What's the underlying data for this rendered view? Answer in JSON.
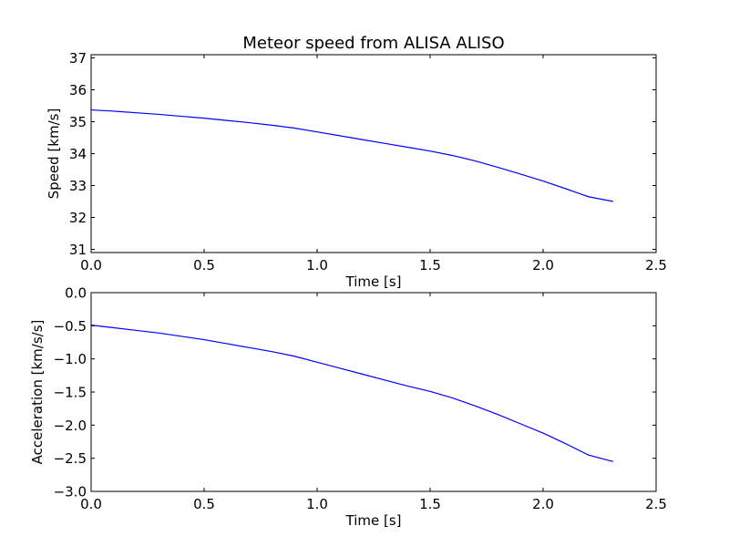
{
  "chart_data": [
    {
      "type": "line",
      "title": "Meteor speed from  ALISA ALISO",
      "xlabel": "Time [s]",
      "ylabel": "Speed [km/s]",
      "xlim": [
        0.0,
        2.5
      ],
      "ylim": [
        30.9,
        37.1
      ],
      "xticks": [
        0.0,
        0.5,
        1.0,
        1.5,
        2.0,
        2.5
      ],
      "xtick_labels": [
        "0.0",
        "0.5",
        "1.0",
        "1.5",
        "2.0",
        "2.5"
      ],
      "yticks": [
        31,
        32,
        33,
        34,
        35,
        36,
        37
      ],
      "ytick_labels": [
        "31",
        "32",
        "33",
        "34",
        "35",
        "36",
        "37"
      ],
      "grid": false,
      "line_color": "#0000ff",
      "series": [
        {
          "x": [
            0.0,
            0.1,
            0.2,
            0.3,
            0.4,
            0.5,
            0.6,
            0.7,
            0.8,
            0.9,
            1.0,
            1.1,
            1.2,
            1.3,
            1.4,
            1.5,
            1.6,
            1.7,
            1.8,
            1.9,
            2.0,
            2.1,
            2.2,
            2.31
          ],
          "y": [
            35.37,
            35.33,
            35.28,
            35.23,
            35.17,
            35.11,
            35.04,
            34.97,
            34.89,
            34.8,
            34.68,
            34.56,
            34.44,
            34.32,
            34.2,
            34.08,
            33.94,
            33.77,
            33.57,
            33.36,
            33.14,
            32.9,
            32.65,
            32.5
          ]
        }
      ]
    },
    {
      "type": "line",
      "title": "",
      "xlabel": "Time [s]",
      "ylabel": "Acceleration [km/s/s]",
      "xlim": [
        0.0,
        2.5
      ],
      "ylim": [
        -3.0,
        0.0
      ],
      "xticks": [
        0.0,
        0.5,
        1.0,
        1.5,
        2.0,
        2.5
      ],
      "xtick_labels": [
        "0.0",
        "0.5",
        "1.0",
        "1.5",
        "2.0",
        "2.5"
      ],
      "yticks": [
        0.0,
        -0.5,
        -1.0,
        -1.5,
        -2.0,
        -2.5,
        -3.0
      ],
      "ytick_labels": [
        "0.0",
        "−0.5",
        "−1.0",
        "−1.5",
        "−2.0",
        "−2.5",
        "−3.0"
      ],
      "grid": false,
      "line_color": "#0000ff",
      "series": [
        {
          "x": [
            0.0,
            0.1,
            0.2,
            0.3,
            0.4,
            0.5,
            0.6,
            0.7,
            0.8,
            0.9,
            1.0,
            1.1,
            1.2,
            1.3,
            1.4,
            1.5,
            1.6,
            1.7,
            1.8,
            1.9,
            2.0,
            2.1,
            2.2,
            2.31
          ],
          "y": [
            -0.49,
            -0.53,
            -0.57,
            -0.61,
            -0.66,
            -0.71,
            -0.77,
            -0.83,
            -0.89,
            -0.96,
            -1.05,
            -1.14,
            -1.23,
            -1.32,
            -1.41,
            -1.49,
            -1.59,
            -1.71,
            -1.84,
            -1.98,
            -2.12,
            -2.28,
            -2.45,
            -2.55
          ]
        }
      ]
    }
  ]
}
